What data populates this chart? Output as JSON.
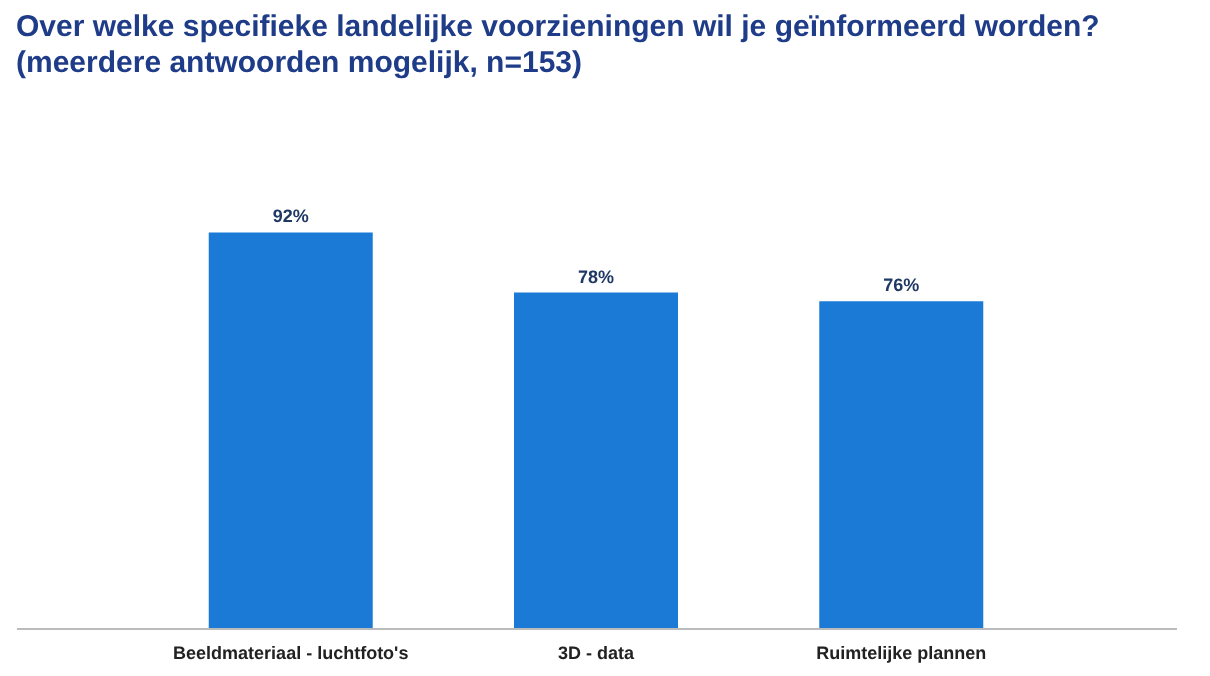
{
  "chart_data": {
    "type": "bar",
    "title": "Over welke specifieke landelijke voorzieningen wil je geïnformeerd worden?",
    "subtitle": "(meerdere antwoorden mogelijk, n=153)",
    "categories": [
      "Beeldmateriaal - luchtfoto's",
      "3D - data",
      "Ruimtelijke plannen"
    ],
    "values": [
      92,
      78,
      76
    ],
    "color": "#1a7ad6",
    "value_labels": [
      "92%",
      "78%",
      "76%"
    ]
  }
}
